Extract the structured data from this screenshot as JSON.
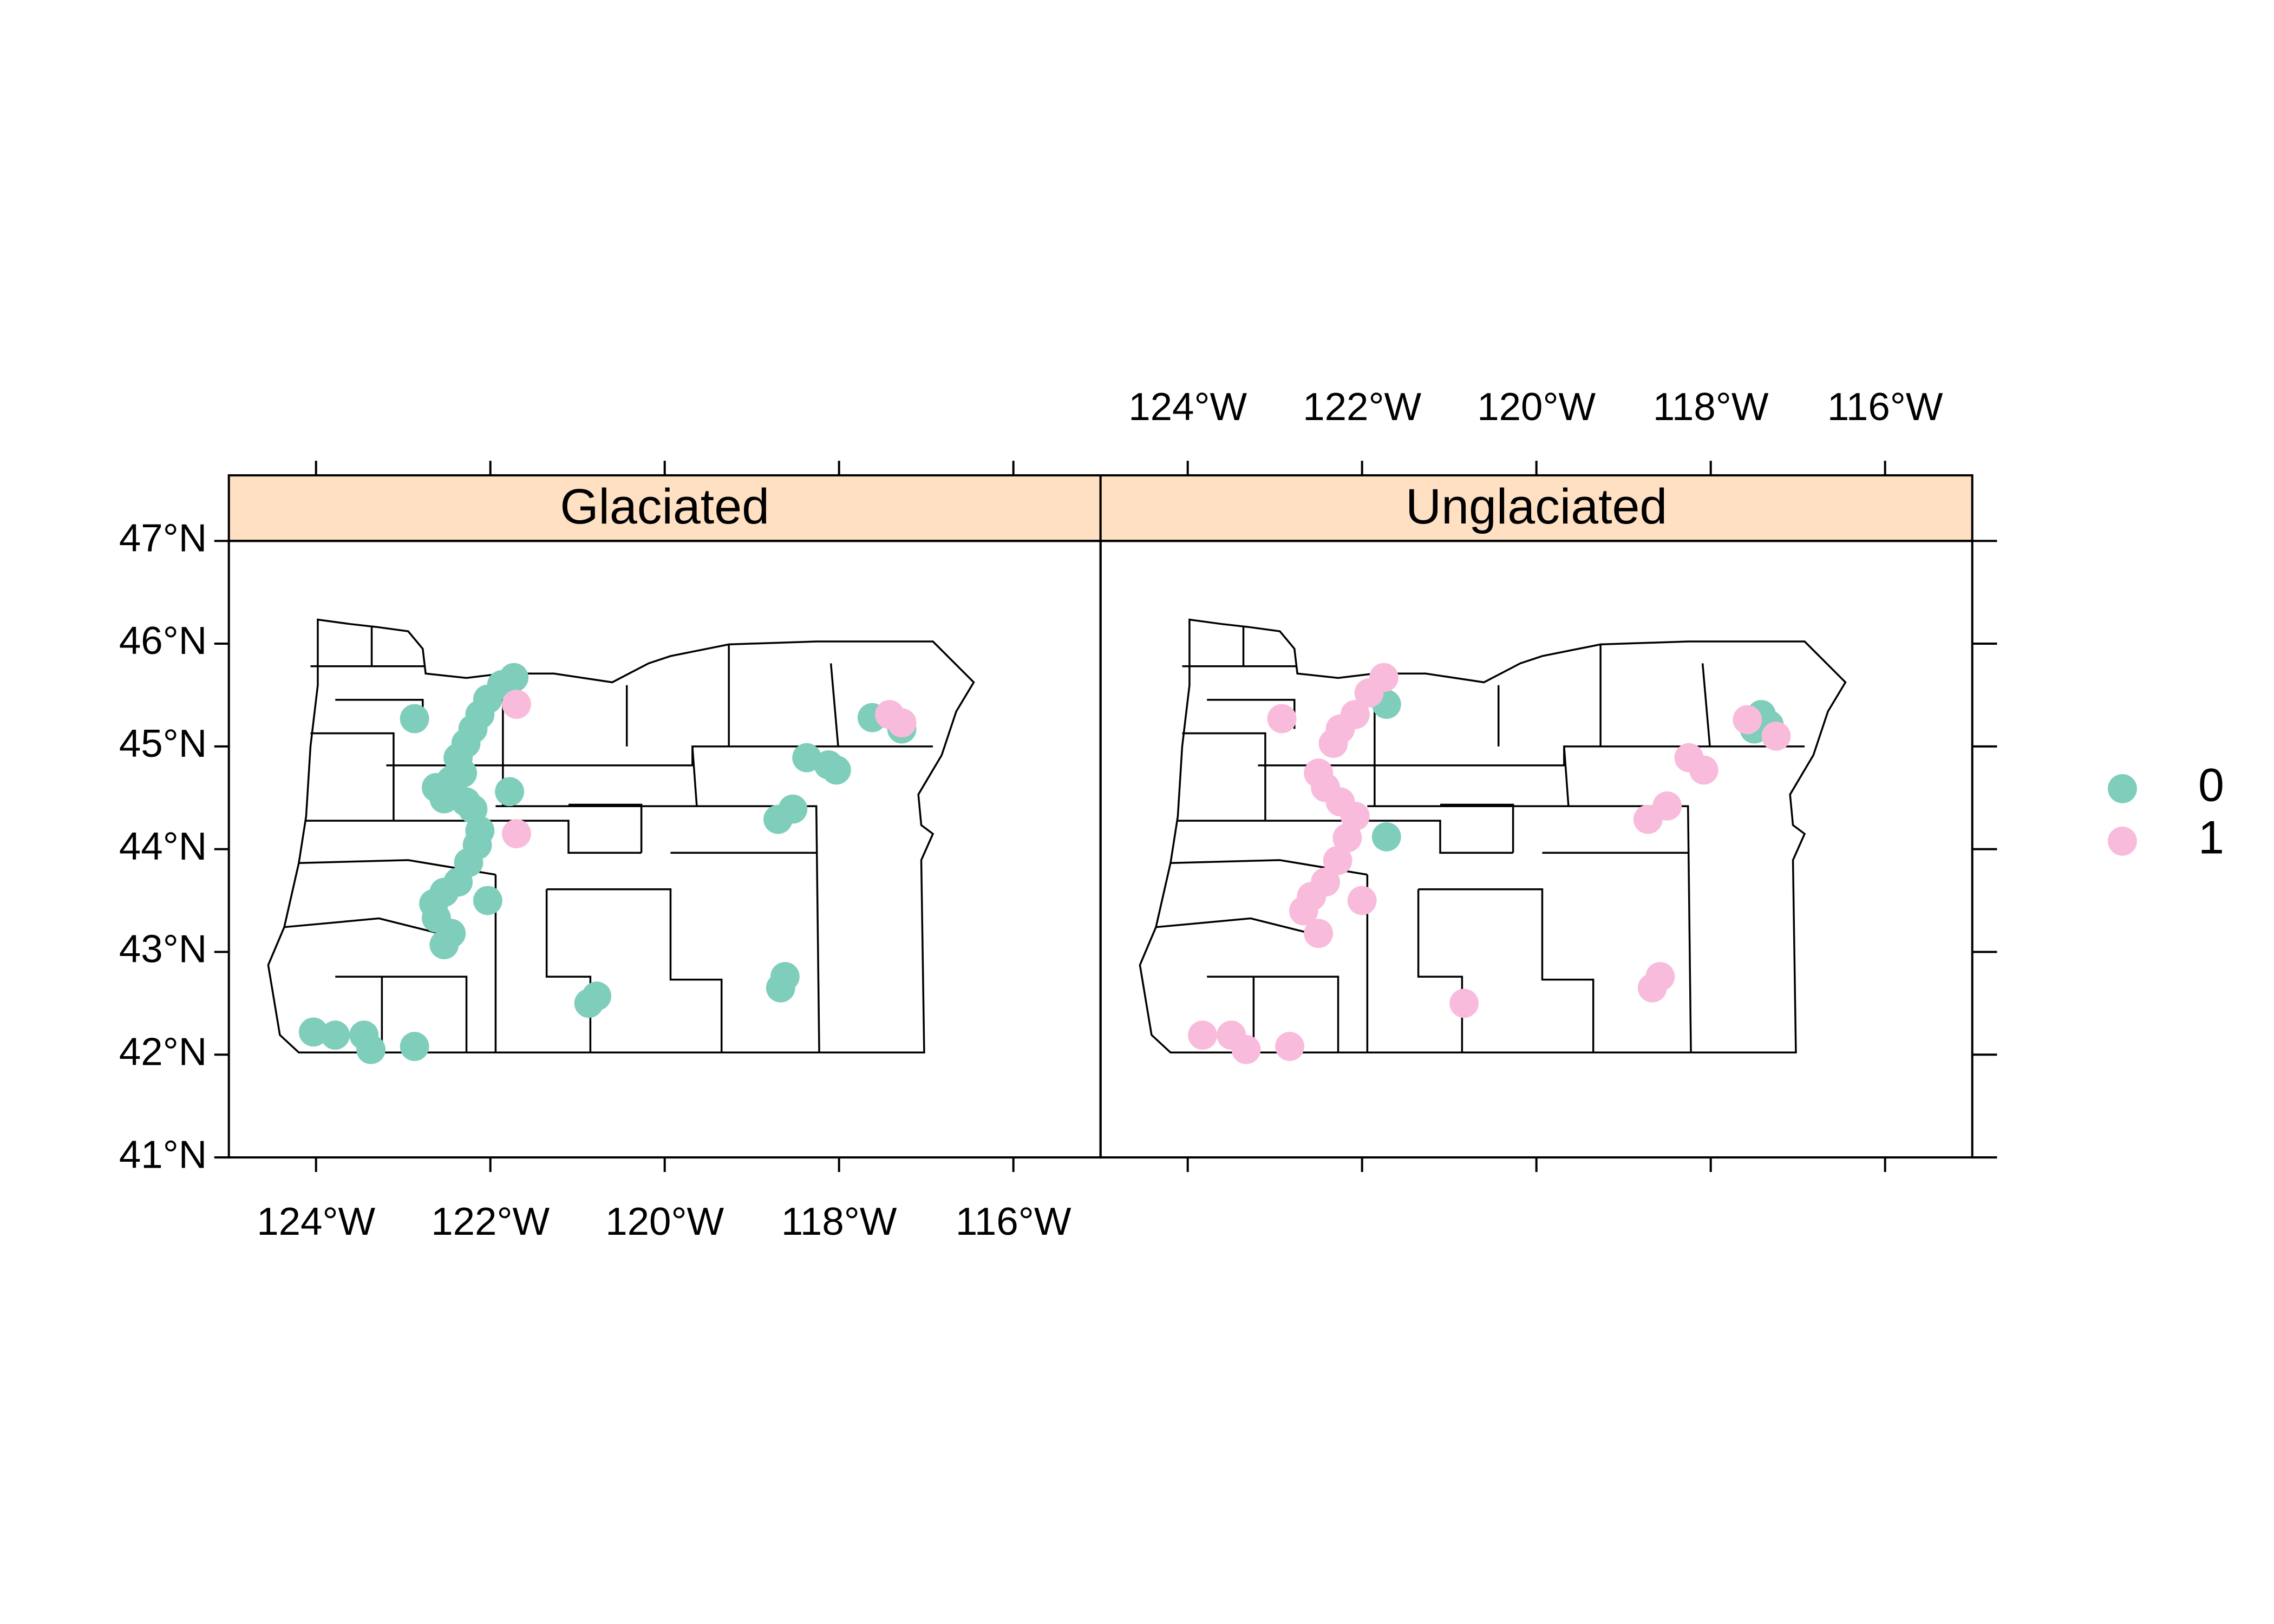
{
  "chart_data": {
    "type": "scatter",
    "xlim": [
      -125,
      -115
    ],
    "ylim": [
      41,
      47
    ],
    "xticks": [
      {
        "value": -124,
        "label": "124°W"
      },
      {
        "value": -122,
        "label": "122°W"
      },
      {
        "value": -120,
        "label": "120°W"
      },
      {
        "value": -118,
        "label": "118°W"
      },
      {
        "value": -116,
        "label": "116°W"
      }
    ],
    "yticks": [
      {
        "value": 41,
        "label": "41°N"
      },
      {
        "value": 42,
        "label": "42°N"
      },
      {
        "value": 43,
        "label": "43°N"
      },
      {
        "value": 44,
        "label": "44°N"
      },
      {
        "value": 45,
        "label": "45°N"
      },
      {
        "value": 46,
        "label": "46°N"
      },
      {
        "value": 47,
        "label": "47°N"
      }
    ],
    "legend_position": "right",
    "series": [
      {
        "name": "0",
        "color": "#7fcdbb"
      },
      {
        "name": "1",
        "color": "#f8bbdc"
      }
    ],
    "panels": [
      {
        "title": "Glaciated",
        "series": [
          {
            "x": [
              -121.73,
              -121.87,
              -122.03,
              -122.12,
              -122.2,
              -122.28,
              -122.37,
              -122.32,
              -122.45,
              -122.62,
              -122.53,
              -122.28,
              -122.2,
              -121.78,
              -122.12,
              -122.15,
              -122.25,
              -122.37,
              -122.53,
              -122.65,
              -122.03,
              -122.62,
              -122.45,
              -122.53,
              -122.87,
              -124.03,
              -123.78,
              -123.45,
              -123.37,
              -122.87,
              -120.87,
              -120.78,
              -118.62,
              -118.67,
              -118.7,
              -118.53,
              -118.37,
              -118.12,
              -118.03,
              -117.62,
              -117.28
            ],
            "y": [
              45.67,
              45.6,
              45.46,
              45.31,
              45.17,
              45.03,
              44.89,
              44.74,
              44.67,
              44.6,
              44.49,
              44.46,
              44.39,
              44.56,
              44.18,
              44.04,
              43.87,
              43.68,
              43.58,
              43.47,
              43.5,
              43.33,
              43.18,
              43.07,
              45.27,
              42.22,
              42.19,
              42.19,
              42.05,
              42.08,
              42.5,
              42.57,
              42.76,
              42.65,
              44.29,
              44.39,
              44.89,
              44.82,
              44.77,
              45.28,
              45.17
            ]
          },
          {
            "x": [
              -121.7,
              -121.7,
              -117.42,
              -117.28
            ],
            "y": [
              45.41,
              44.15,
              45.31,
              45.23
            ]
          }
        ]
      },
      {
        "title": "Unglaciated",
        "series": [
          {
            "x": [
              -121.72,
              -121.72,
              -117.42,
              -117.33,
              -117.5
            ],
            "y": [
              45.41,
              44.12,
              45.31,
              45.21,
              45.17
            ]
          },
          {
            "x": [
              -122.92,
              -121.75,
              -121.92,
              -122.08,
              -122.25,
              -122.33,
              -122.5,
              -122.42,
              -122.25,
              -122.08,
              -122.17,
              -122.28,
              -122.42,
              -122.58,
              -122.67,
              -122.5,
              -122.0,
              -123.83,
              -123.5,
              -123.33,
              -122.83,
              -120.83,
              -118.58,
              -118.67,
              -118.72,
              -118.5,
              -118.25,
              -118.08,
              -117.58,
              -117.25
            ],
            "y": [
              45.27,
              45.67,
              45.52,
              45.31,
              45.17,
              45.03,
              44.74,
              44.6,
              44.46,
              44.32,
              44.11,
              43.89,
              43.68,
              43.54,
              43.4,
              43.18,
              43.5,
              42.19,
              42.19,
              42.05,
              42.08,
              42.5,
              42.76,
              42.65,
              44.29,
              44.42,
              44.89,
              44.77,
              45.26,
              45.1
            ]
          }
        ]
      }
    ]
  }
}
